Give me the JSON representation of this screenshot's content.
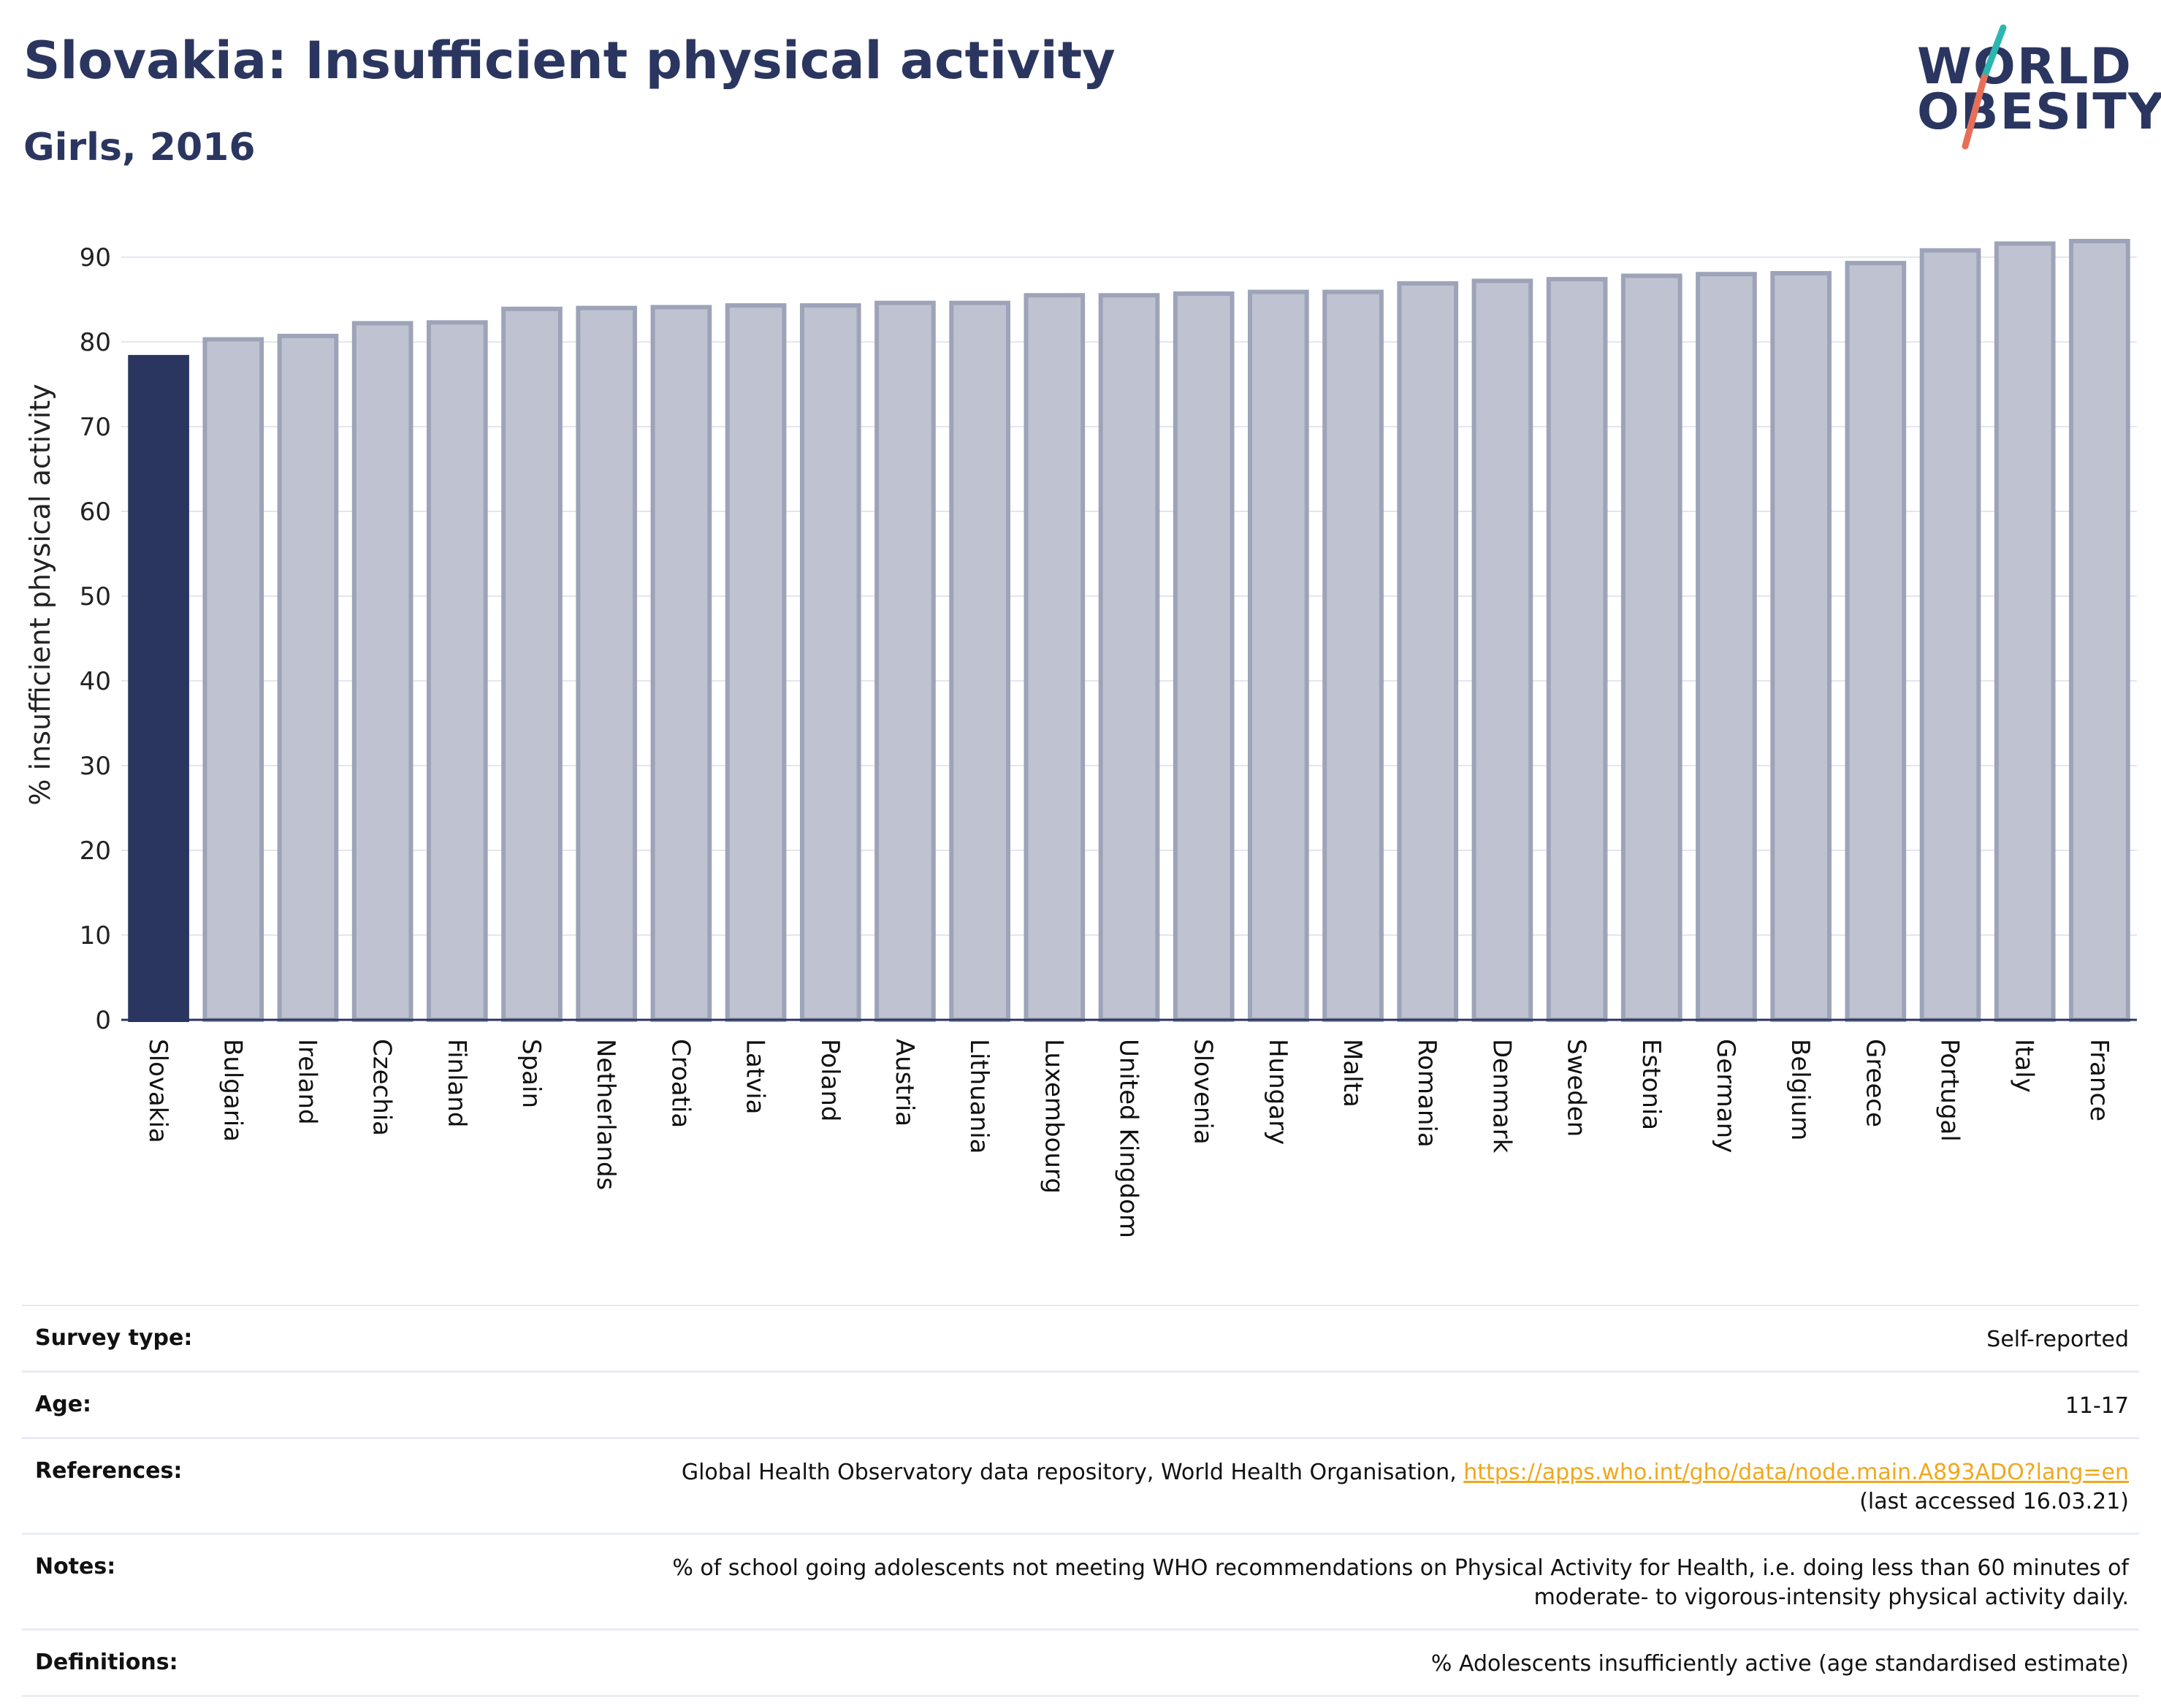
{
  "header": {
    "title": "Slovakia: Insufficient physical activity",
    "subtitle": "Girls, 2016",
    "logo_line1": "WORLD",
    "logo_line2": "OBESITY"
  },
  "colors": {
    "highlight": "#2b3660",
    "bar_fill": "#bfc3d1",
    "bar_stroke": "#9da3b8",
    "logo_teal": "#2db6b0",
    "logo_coral": "#e76f5a",
    "link": "#f0a81c"
  },
  "chart_data": {
    "type": "bar",
    "title": "Slovakia: Insufficient physical activity",
    "subtitle": "Girls, 2016",
    "ylabel": "% insufficient physical activity",
    "xlabel": "",
    "ylim": [
      0,
      92
    ],
    "yticks": [
      0,
      10,
      20,
      30,
      40,
      50,
      60,
      70,
      80,
      90
    ],
    "grid": true,
    "highlight_category": "Slovakia",
    "categories": [
      "Slovakia",
      "Bulgaria",
      "Ireland",
      "Czechia",
      "Finland",
      "Spain",
      "Netherlands",
      "Croatia",
      "Latvia",
      "Poland",
      "Austria",
      "Lithuania",
      "Luxembourg",
      "United Kingdom",
      "Slovenia",
      "Hungary",
      "Malta",
      "Romania",
      "Denmark",
      "Sweden",
      "Estonia",
      "Germany",
      "Belgium",
      "Greece",
      "Portugal",
      "Italy",
      "France"
    ],
    "values": [
      78.2,
      80.3,
      80.7,
      82.2,
      82.3,
      83.9,
      84.0,
      84.1,
      84.3,
      84.3,
      84.6,
      84.6,
      85.5,
      85.5,
      85.7,
      85.9,
      85.9,
      86.9,
      87.2,
      87.4,
      87.8,
      88.0,
      88.1,
      89.3,
      90.8,
      91.6,
      91.9
    ]
  },
  "info": {
    "survey_type_label": "Survey type:",
    "survey_type_value": "Self-reported",
    "age_label": "Age:",
    "age_value": "11-17",
    "references_label": "References:",
    "references_text": "Global Health Observatory data repository, World Health Organisation, ",
    "references_link": "https://apps.who.int/gho/data/node.main.A893ADO?lang=en",
    "references_accessed": "(last accessed 16.03.21)",
    "notes_label": "Notes:",
    "notes_line1": "% of school going adolescents not meeting WHO recommendations on Physical Activity for Health, i.e. doing less than 60 minutes of",
    "notes_line2": "moderate- to vigorous-intensity physical activity daily.",
    "definitions_label": "Definitions:",
    "definitions_value": "% Adolescents insufficiently active (age standardised estimate)"
  }
}
